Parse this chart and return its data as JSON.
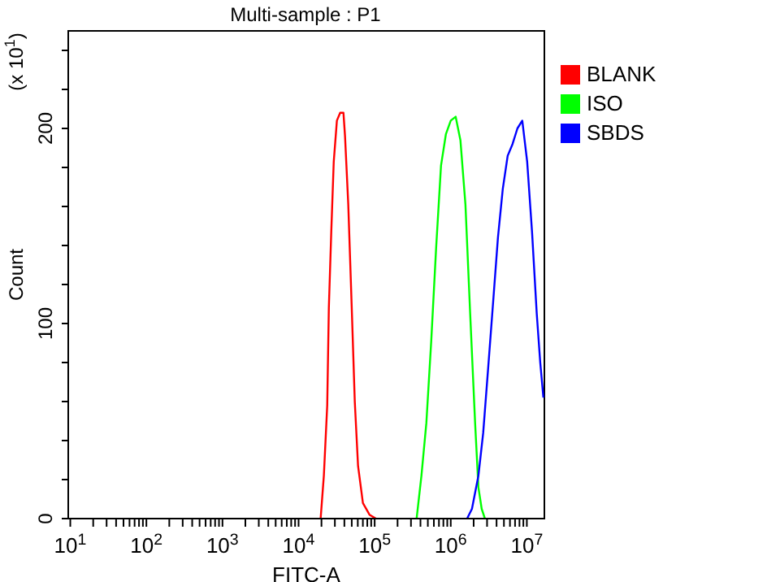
{
  "chart_data": {
    "type": "line",
    "title": "Multi-sample : P1",
    "xlabel": "FITC-A",
    "ylabel": "Count",
    "annotations": [
      "(x 10$^{1}$)"
    ],
    "log": "x",
    "legend": "right",
    "xlim": [
      9.4,
      17000000
    ],
    "ylim": [
      0,
      250
    ],
    "xticks": [
      {
        "value": 10,
        "label": "10$^{1}$"
      },
      {
        "value": 20,
        "label": null
      },
      {
        "value": 30,
        "label": null
      },
      {
        "value": 40,
        "label": null
      },
      {
        "value": 50,
        "label": null
      },
      {
        "value": 60,
        "label": null
      },
      {
        "value": 70,
        "label": null
      },
      {
        "value": 80,
        "label": null
      },
      {
        "value": 90,
        "label": null
      },
      {
        "value": 100,
        "label": "10$^{2}$"
      },
      {
        "value": 200,
        "label": null
      },
      {
        "value": 300,
        "label": null
      },
      {
        "value": 400,
        "label": null
      },
      {
        "value": 500,
        "label": null
      },
      {
        "value": 600,
        "label": null
      },
      {
        "value": 700,
        "label": null
      },
      {
        "value": 800,
        "label": null
      },
      {
        "value": 900,
        "label": null
      },
      {
        "value": 1000,
        "label": "10$^{3}$"
      },
      {
        "value": 2000,
        "label": null
      },
      {
        "value": 3000,
        "label": null
      },
      {
        "value": 4000,
        "label": null
      },
      {
        "value": 5000,
        "label": null
      },
      {
        "value": 6000,
        "label": null
      },
      {
        "value": 7000,
        "label": null
      },
      {
        "value": 8000,
        "label": null
      },
      {
        "value": 9000,
        "label": null
      },
      {
        "value": 10000,
        "label": "10$^{4}$"
      },
      {
        "value": 20000,
        "label": null
      },
      {
        "value": 30000,
        "label": null
      },
      {
        "value": 40000,
        "label": null
      },
      {
        "value": 50000,
        "label": null
      },
      {
        "value": 60000,
        "label": null
      },
      {
        "value": 70000,
        "label": null
      },
      {
        "value": 80000,
        "label": null
      },
      {
        "value": 90000,
        "label": null
      },
      {
        "value": 100000,
        "label": "10$^{5}$"
      },
      {
        "value": 200000,
        "label": null
      },
      {
        "value": 300000,
        "label": null
      },
      {
        "value": 400000,
        "label": null
      },
      {
        "value": 500000,
        "label": null
      },
      {
        "value": 600000,
        "label": null
      },
      {
        "value": 700000,
        "label": null
      },
      {
        "value": 800000,
        "label": null
      },
      {
        "value": 900000,
        "label": null
      },
      {
        "value": 1000000,
        "label": "10$^{6}$"
      },
      {
        "value": 2000000,
        "label": null
      },
      {
        "value": 3000000,
        "label": null
      },
      {
        "value": 4000000,
        "label": null
      },
      {
        "value": 5000000,
        "label": null
      },
      {
        "value": 6000000,
        "label": null
      },
      {
        "value": 7000000,
        "label": null
      },
      {
        "value": 8000000,
        "label": null
      },
      {
        "value": 9000000,
        "label": null
      },
      {
        "value": 10000000,
        "label": "10$^{7}$"
      }
    ],
    "yticks": [
      0,
      {
        "value": 20,
        "label": null
      },
      {
        "value": 40,
        "label": null
      },
      {
        "value": 60,
        "label": null
      },
      {
        "value": 80,
        "label": null
      },
      100,
      {
        "value": 120,
        "label": null
      },
      {
        "value": 140,
        "label": null
      },
      {
        "value": 160,
        "label": null
      },
      {
        "value": 180,
        "label": null
      },
      200,
      {
        "value": 220,
        "label": null
      },
      {
        "value": 240,
        "label": null
      }
    ],
    "series": [
      {
        "name": "BLANK",
        "color": "#ff0000",
        "x": [
          19500,
          21500,
          23800,
          25000,
          26900,
          29000,
          31900,
          35200,
          38900,
          40800,
          45000,
          49800,
          54800,
          60500,
          70100,
          85500,
          104000
        ],
        "values": [
          0,
          22,
          58,
          108,
          147,
          183,
          204,
          208,
          208,
          196,
          161,
          110,
          60,
          27,
          8,
          2,
          0
        ]
      },
      {
        "name": "ISO",
        "color": "#00ff00",
        "x": [
          356000,
          412000,
          478000,
          554000,
          643000,
          745000,
          863000,
          1000000,
          1160000,
          1340000,
          1560000,
          1800000,
          2090000,
          2310000,
          2550000,
          2810000
        ],
        "values": [
          0,
          22,
          49,
          91,
          139,
          181,
          197,
          204,
          206,
          194,
          161,
          105,
          49,
          16,
          5,
          0
        ]
      },
      {
        "name": "SBDS",
        "color": "#0000ff",
        "x": [
          1640000,
          1900000,
          2310000,
          2670000,
          3100000,
          3590000,
          4170000,
          4830000,
          5600000,
          6490000,
          7520000,
          8710000,
          10100000,
          11700000,
          13500000,
          15000000,
          16500000
        ],
        "values": [
          0,
          5,
          22,
          44,
          77,
          110,
          144,
          169,
          186,
          192,
          200,
          204,
          183,
          147,
          105,
          80,
          62
        ]
      }
    ]
  }
}
